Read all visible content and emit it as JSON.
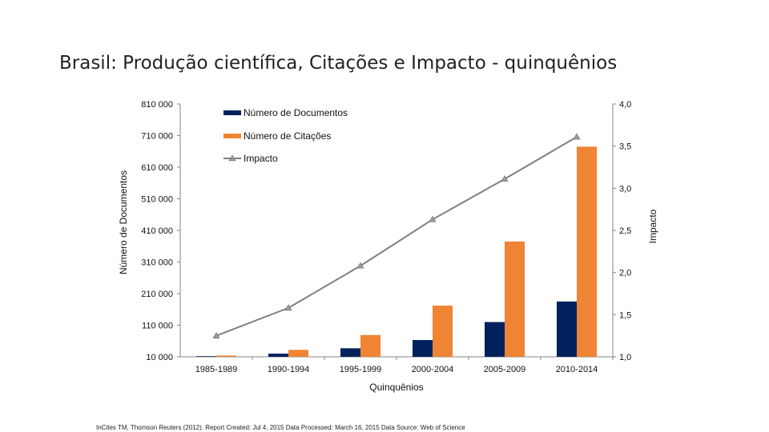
{
  "page": {
    "title": "Brasil: Produção científica, Citações e Impacto - quinquênios",
    "source": "InCites TM, Thomson Reuters (2012). Report Created: Jul 4, 2015  Data Processed: March 16, 2015  Data Source: Web of Science"
  },
  "chart_data": {
    "type": "bar",
    "title": "Brasil: Produção científica, Citações e Impacto - quinquênios",
    "categories": [
      "1985-1989",
      "1990-1994",
      "1995-1999",
      "2000-2004",
      "2005-2009",
      "2010-2014"
    ],
    "series": [
      {
        "name": "Número de Documentos",
        "type": "bar",
        "axis": "left",
        "color": "#00215c",
        "values": [
          12000,
          20000,
          37000,
          63000,
          120000,
          185000
        ]
      },
      {
        "name": "Número de Citações",
        "type": "bar",
        "axis": "left",
        "color": "#ee8434",
        "values": [
          14000,
          32000,
          79000,
          172000,
          375000,
          675000
        ]
      },
      {
        "name": "Impacto",
        "type": "line",
        "axis": "right",
        "color": "#7f7f7f",
        "values": [
          1.25,
          1.58,
          2.08,
          2.63,
          3.11,
          3.61
        ]
      }
    ],
    "xlabel": "Quinquênios",
    "ylabel": "Número de Documentos",
    "y2label": "Impacto",
    "ylim": [
      10000,
      810000
    ],
    "y2lim": [
      1.0,
      4.0
    ],
    "yticks": [
      "10 000",
      "110 000",
      "210 000",
      "310 000",
      "410 000",
      "510 000",
      "610 000",
      "710 000",
      "810 000"
    ],
    "y2ticks": [
      "1,0",
      "1,5",
      "2,0",
      "2,5",
      "3,0",
      "3,5",
      "4,0"
    ],
    "grid": false,
    "legend": "top-left"
  }
}
